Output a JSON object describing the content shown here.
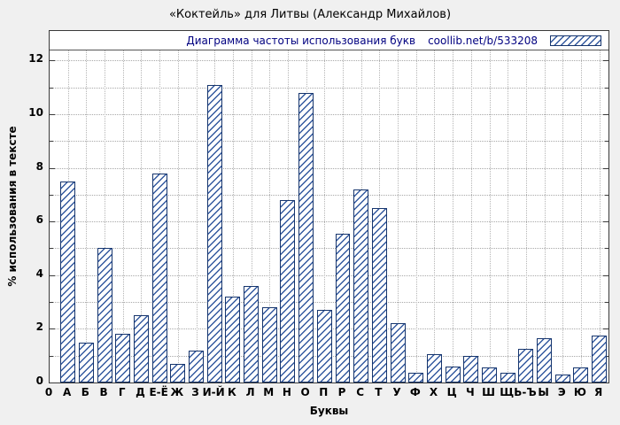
{
  "title": "«Коктейль» для Литвы (Александр Михайлов)",
  "legend": {
    "label": "Диаграмма частоты использования букв",
    "source": "coollib.net/b/533208"
  },
  "axes": {
    "xlabel": "Буквы",
    "ylabel": "% использования в тексте",
    "origin_label": "0"
  },
  "chart_data": {
    "type": "bar",
    "title": "«Коктейль» для Литвы (Александр Михайлов)",
    "xlabel": "Буквы",
    "ylabel": "% использования в тексте",
    "legend_position": "top-right-inside",
    "grid": true,
    "ylim": [
      0,
      13.1
    ],
    "yticks": [
      0,
      2,
      4,
      6,
      8,
      10,
      12
    ],
    "categories": [
      "А",
      "Б",
      "В",
      "Г",
      "Д",
      "Е-Ё",
      "Ж",
      "З",
      "И-Й",
      "К",
      "Л",
      "М",
      "Н",
      "О",
      "П",
      "Р",
      "С",
      "Т",
      "У",
      "Ф",
      "Х",
      "Ц",
      "Ч",
      "Ш",
      "Щ",
      "Ь-Ъ",
      "Ы",
      "Э",
      "Ю",
      "Я"
    ],
    "values": [
      7.5,
      1.5,
      5.0,
      1.8,
      2.5,
      7.8,
      0.7,
      1.2,
      11.1,
      3.2,
      3.6,
      2.8,
      6.8,
      10.8,
      2.7,
      5.55,
      7.2,
      6.5,
      2.2,
      0.35,
      1.05,
      0.6,
      1.0,
      0.55,
      0.35,
      1.25,
      1.65,
      0.3,
      0.55,
      1.75
    ],
    "colors": {
      "bar_border": "#16356d",
      "hatch": "#33599f",
      "plot_bg": "#ffffff",
      "page_bg": "#f0f0f0",
      "grid": "#aaaaaa",
      "legend_text": "#000080"
    }
  }
}
